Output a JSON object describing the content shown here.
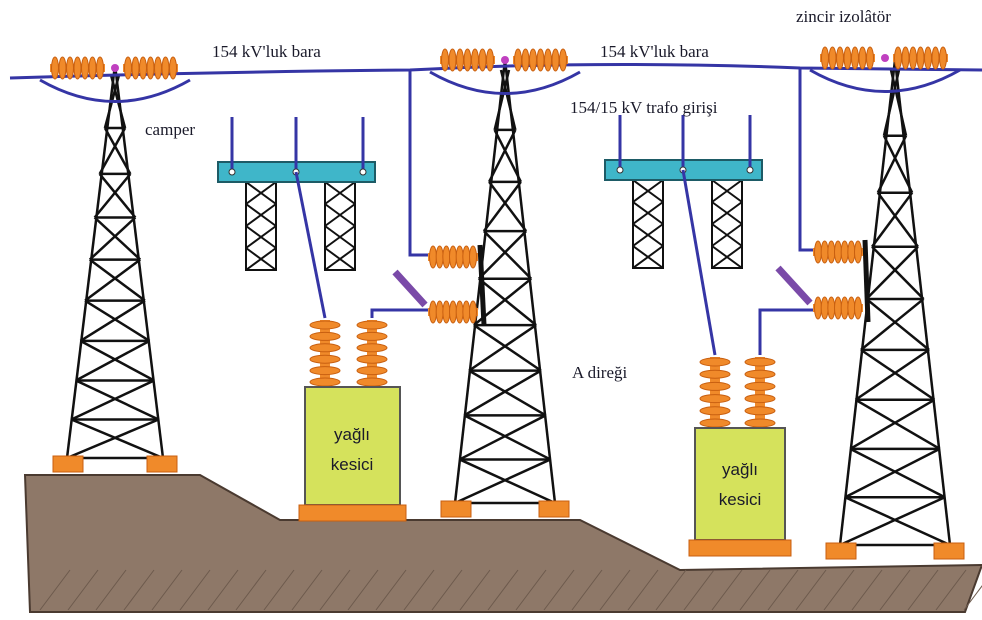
{
  "labels": {
    "bus_left": "154 kV'luk bara",
    "bus_right": "154 kV'luk bara",
    "chain_insulator": "zincir izolâtör",
    "jumper": "camper",
    "transformer_input": "154/15 kV trafo girişi",
    "tower_a": "A direği"
  },
  "breakers": [
    {
      "line1": "yağlı",
      "line2": "kesici"
    },
    {
      "line1": "yağlı",
      "line2": "kesici"
    }
  ]
}
